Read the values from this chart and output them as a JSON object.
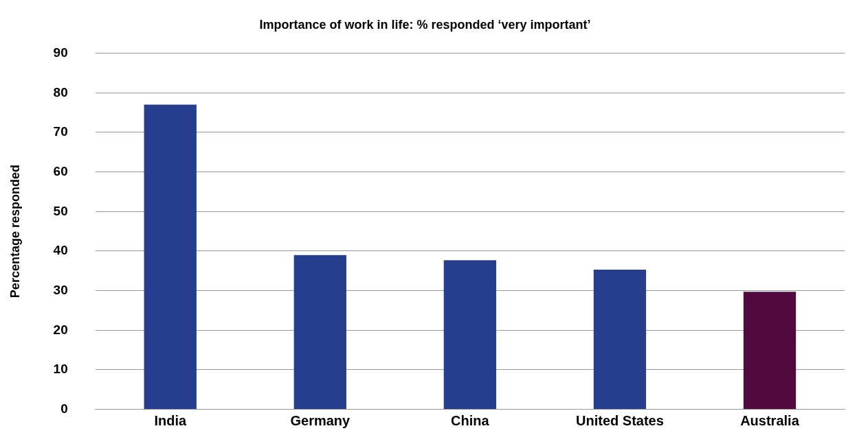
{
  "chart_data": {
    "type": "bar",
    "title": "Importance of work in life: % responded ‘very important’",
    "ylabel": "Percentage responded",
    "categories": [
      "India",
      "Germany",
      "China",
      "United States",
      "Australia"
    ],
    "values": [
      77,
      39,
      37.7,
      35.3,
      29.7
    ],
    "colors": [
      "#253f8e",
      "#253f8e",
      "#253f8e",
      "#253f8e",
      "#520a3e"
    ],
    "ylim": [
      0,
      90
    ],
    "yticks": [
      0,
      10,
      20,
      30,
      40,
      50,
      60,
      70,
      80,
      90
    ],
    "grid": "y",
    "legend": false
  }
}
